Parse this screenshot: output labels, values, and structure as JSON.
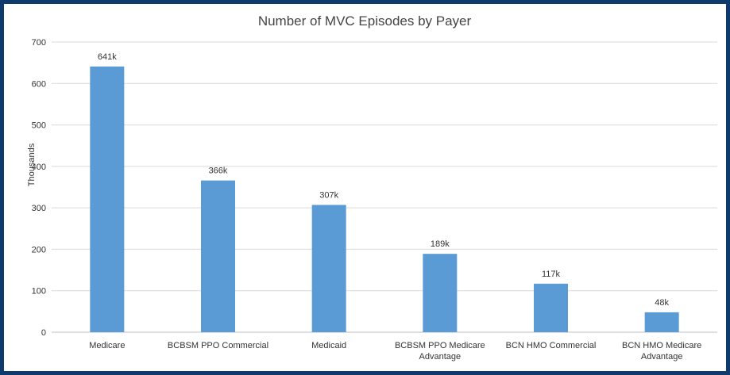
{
  "chart_data": {
    "type": "bar",
    "title": "Number of MVC Episodes by Payer",
    "ylabel": "Thousands",
    "xlabel": "",
    "ylim": [
      0,
      700
    ],
    "yticks": [
      0,
      100,
      200,
      300,
      400,
      500,
      600,
      700
    ],
    "grid": true,
    "legend": "none",
    "bar_color": "#5b9bd5",
    "categories": [
      [
        "Medicare"
      ],
      [
        "BCBSM PPO Commercial"
      ],
      [
        "Medicaid"
      ],
      [
        "BCBSM PPO Medicare",
        "Advantage"
      ],
      [
        "BCN HMO Commercial"
      ],
      [
        "BCN HMO Medicare",
        "Advantage"
      ]
    ],
    "values": [
      641,
      366,
      307,
      189,
      117,
      48
    ],
    "data_labels": [
      "641k",
      "366k",
      "307k",
      "189k",
      "117k",
      "48k"
    ]
  }
}
